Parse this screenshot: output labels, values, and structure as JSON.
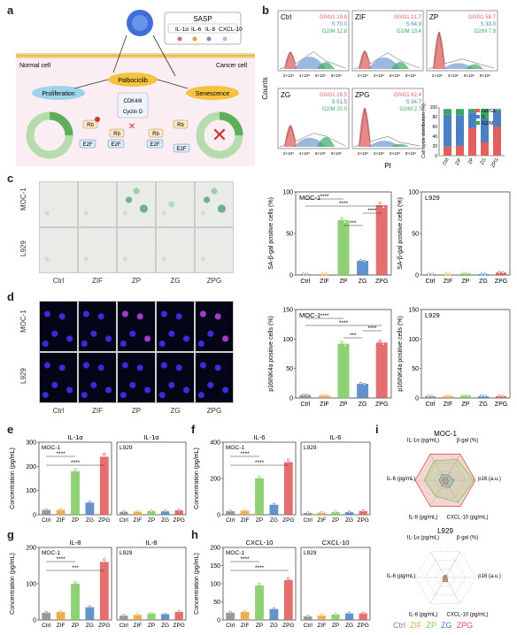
{
  "panels": {
    "a": "a",
    "b": "b",
    "c": "c",
    "d": "d",
    "e": "e",
    "f": "f",
    "g": "g",
    "h": "h",
    "i": "i"
  },
  "schematic": {
    "sasp_title": "SASP",
    "sasp_items": [
      "IL-1α",
      "IL-6",
      "IL-8",
      "CXCL-10"
    ],
    "sasp_colors": [
      "#e06666",
      "#e8a23a",
      "#8f7fbf",
      "#9fc5e8"
    ],
    "normal_cell": "Normal cell",
    "cancer_cell": "Cancer cell",
    "palbociclib": "Palbociclib",
    "proliferation": "Proliferation",
    "senescence": "Senescence",
    "cdk": "CDK4/6",
    "cyclin": "Cyclin D",
    "rb": "Rb",
    "e2f": "E2F",
    "phase_labels": [
      "G₁",
      "S",
      "G₂",
      "M"
    ]
  },
  "flow": {
    "axis_y": "Counts",
    "axis_x": "PI",
    "tick_x": [
      "2×10⁶",
      "4×10⁶",
      "6×10⁶",
      "8×10⁶"
    ],
    "samples": [
      {
        "name": "Ctrl",
        "g0g1": "G0/G1 19.8",
        "s": "S 70.0",
        "g2m": "G2/M 12.8"
      },
      {
        "name": "ZIF",
        "g0g1": "G0/G1 21.7",
        "s": "S 64.9",
        "g2m": "G2/M 13.4"
      },
      {
        "name": "ZP",
        "g0g1": "G0/G1 58.7",
        "s": "S 33.0",
        "g2m": "G2/M 7.9"
      },
      {
        "name": "ZG",
        "g0g1": "G0/G1 28.5",
        "s": "S 51.5",
        "g2m": "G2/M 20.0"
      },
      {
        "name": "ZPG",
        "g0g1": "G0/G1 62.4",
        "s": "S 34.7",
        "g2m": "G2/M 2.7"
      }
    ],
    "colors": {
      "g0g1": "#e06060",
      "s": "#4a7fc1",
      "g2m": "#3aa864"
    }
  },
  "cycle_chart": {
    "ylabel": "Cell cycle distribution (%)",
    "legend": [
      "G0/G1",
      "S",
      "G2/M"
    ],
    "yticks": [
      "0",
      "20",
      "40",
      "60",
      "80",
      "100"
    ]
  },
  "micro": {
    "rows_c": [
      "MOC-1",
      "L929"
    ],
    "rows_d": [
      "MOC-1",
      "L929"
    ],
    "cols": [
      "Ctrl",
      "ZIF",
      "ZP",
      "ZG",
      "ZPG"
    ]
  },
  "colors": {
    "Ctrl": "#888888",
    "ZIF": "#e8a23a",
    "ZP": "#7dc95e",
    "ZG": "#4a7fc1",
    "ZPG": "#e05555"
  },
  "groups": [
    "Ctrl",
    "ZIF",
    "ZP",
    "ZG",
    "ZPG"
  ],
  "sig": "****",
  "sig3": "***",
  "chart_data": [
    {
      "type": "bar",
      "id": "c_moc",
      "title": "MOC-1",
      "ylabel": "SA-β-gal positive cells (%)",
      "categories": [
        "Ctrl",
        "ZIF",
        "ZP",
        "ZG",
        "ZPG"
      ],
      "values": [
        1,
        1,
        66,
        17,
        84
      ],
      "ylim": [
        0,
        100
      ],
      "yticks": [
        0,
        50,
        100
      ],
      "sig": [
        [
          "Ctrl",
          "ZP",
          "****"
        ],
        [
          "Ctrl",
          "ZPG",
          "****"
        ],
        [
          "ZP",
          "ZG",
          "***"
        ],
        [
          "ZG",
          "ZPG",
          "****"
        ]
      ]
    },
    {
      "type": "bar",
      "id": "c_l929",
      "title": "L929",
      "ylabel": "SA-β-gal positive cells (%)",
      "categories": [
        "Ctrl",
        "ZIF",
        "ZP",
        "ZG",
        "ZPG"
      ],
      "values": [
        1,
        1,
        2,
        1,
        3
      ],
      "ylim": [
        0,
        100
      ],
      "yticks": [
        0,
        50,
        100
      ],
      "sig": []
    },
    {
      "type": "bar",
      "id": "d_moc",
      "title": "MOC-1",
      "ylabel": "p16INK4a positive cells (%)",
      "categories": [
        "Ctrl",
        "ZIF",
        "ZP",
        "ZG",
        "ZPG"
      ],
      "values": [
        5,
        4,
        92,
        24,
        94
      ],
      "ylim": [
        0,
        150
      ],
      "yticks": [
        0,
        50,
        100,
        150
      ],
      "sig": [
        [
          "Ctrl",
          "ZP",
          "****"
        ],
        [
          "Ctrl",
          "ZPG",
          "****"
        ],
        [
          "ZP",
          "ZG",
          "***"
        ],
        [
          "ZG",
          "ZPG",
          "****"
        ]
      ]
    },
    {
      "type": "bar",
      "id": "d_l929",
      "title": "L929",
      "ylabel": "p16INK4a positive cells (%)",
      "categories": [
        "Ctrl",
        "ZIF",
        "ZP",
        "ZG",
        "ZPG"
      ],
      "values": [
        3,
        3,
        4,
        3,
        3
      ],
      "ylim": [
        0,
        150
      ],
      "yticks": [
        0,
        50,
        100,
        150
      ],
      "sig": []
    },
    {
      "type": "bar",
      "id": "e",
      "title": "IL-1α",
      "ylabel": "Concentration (pg/mL)",
      "series": [
        {
          "name": "MOC-1",
          "values": [
            20,
            20,
            180,
            50,
            240
          ]
        },
        {
          "name": "L929",
          "values": [
            12,
            13,
            15,
            14,
            18
          ]
        }
      ],
      "categories": [
        "Ctrl",
        "ZIF",
        "ZP",
        "ZG",
        "ZPG"
      ],
      "ylim": [
        0,
        300
      ],
      "yticks": [
        0,
        100,
        200,
        300
      ],
      "sig": [
        [
          "Ctrl",
          "ZP",
          "****"
        ],
        [
          "Ctrl",
          "ZPG",
          "****"
        ]
      ]
    },
    {
      "type": "bar",
      "id": "f",
      "title": "IL-6",
      "ylabel": "Concentration (pg/mL)",
      "series": [
        {
          "name": "MOC-1",
          "values": [
            20,
            22,
            200,
            55,
            290
          ]
        },
        {
          "name": "L929",
          "values": [
            10,
            12,
            15,
            14,
            20
          ]
        }
      ],
      "categories": [
        "Ctrl",
        "ZIF",
        "ZP",
        "ZG",
        "ZPG"
      ],
      "ylim": [
        0,
        400
      ],
      "yticks": [
        0,
        200,
        400
      ],
      "sig": [
        [
          "Ctrl",
          "ZP",
          "****"
        ],
        [
          "Ctrl",
          "ZPG",
          "****"
        ]
      ]
    },
    {
      "type": "bar",
      "id": "g",
      "title": "IL-8",
      "ylabel": "Concentration (pg/mL)",
      "series": [
        {
          "name": "MOC-1",
          "values": [
            20,
            22,
            100,
            35,
            160
          ]
        },
        {
          "name": "L929",
          "values": [
            12,
            14,
            18,
            16,
            22
          ]
        }
      ],
      "categories": [
        "Ctrl",
        "ZIF",
        "ZP",
        "ZG",
        "ZPG"
      ],
      "ylim": [
        0,
        200
      ],
      "yticks": [
        0,
        100,
        200
      ],
      "sig": [
        [
          "Ctrl",
          "ZP",
          "****"
        ],
        [
          "Ctrl",
          "ZPG",
          "***"
        ]
      ]
    },
    {
      "type": "bar",
      "id": "h",
      "title": "CXCL-10",
      "ylabel": "Concentration (pg/mL)",
      "series": [
        {
          "name": "MOC-1",
          "values": [
            20,
            22,
            95,
            30,
            110
          ]
        },
        {
          "name": "L929",
          "values": [
            10,
            12,
            15,
            18,
            18
          ]
        }
      ],
      "categories": [
        "Ctrl",
        "ZIF",
        "ZP",
        "ZG",
        "ZPG"
      ],
      "ylim": [
        0,
        200
      ],
      "yticks": [
        0,
        50,
        100,
        150,
        200
      ],
      "sig": [
        [
          "Ctrl",
          "ZP",
          "****"
        ],
        [
          "Ctrl",
          "ZPG",
          "****"
        ]
      ]
    },
    {
      "type": "bar",
      "id": "b_cycle",
      "title": "",
      "categories": [
        "Ctrl",
        "ZIF",
        "ZP",
        "ZG",
        "ZPG"
      ],
      "series": [
        {
          "name": "G0/G1",
          "values": [
            19.8,
            21.7,
            58.7,
            28.5,
            62.4
          ]
        },
        {
          "name": "S",
          "values": [
            70.0,
            64.9,
            33.0,
            51.5,
            34.7
          ]
        },
        {
          "name": "G2/M",
          "values": [
            12.8,
            13.4,
            7.9,
            20.0,
            2.7
          ]
        }
      ],
      "ylim": [
        0,
        100
      ]
    },
    {
      "type": "radar",
      "id": "i_moc",
      "title": "MOC-1",
      "axes": [
        "β-gal (%)",
        "p16 (a.u.)",
        "CXCL-10 (pg/mL)",
        "IL-8 (pg/mL)",
        "IL-6 (pg/mL)",
        "IL-1α (pg/mL)"
      ],
      "series": [
        {
          "name": "Ctrl",
          "values": [
            0.1,
            0.1,
            0.15,
            0.12,
            0.1,
            0.1
          ]
        },
        {
          "name": "ZIF",
          "values": [
            0.1,
            0.1,
            0.15,
            0.14,
            0.1,
            0.1
          ]
        },
        {
          "name": "ZP",
          "values": [
            0.8,
            0.95,
            0.85,
            0.62,
            0.7,
            0.75
          ]
        },
        {
          "name": "ZG",
          "values": [
            0.2,
            0.28,
            0.28,
            0.22,
            0.2,
            0.22
          ]
        },
        {
          "name": "ZPG",
          "values": [
            1.0,
            1.0,
            1.0,
            1.0,
            1.0,
            1.0
          ]
        }
      ]
    },
    {
      "type": "radar",
      "id": "i_l929",
      "title": "L929",
      "axes": [
        "β-gal (%)",
        "p16 (a.u.)",
        "CXCL-10 (pg/mL)",
        "IL-8 (pg/mL)",
        "IL-6 (pg/mL)",
        "IL-1α (pg/mL)"
      ],
      "series": [
        {
          "name": "Ctrl",
          "values": [
            0.04,
            0.06,
            0.08,
            0.08,
            0.04,
            0.06
          ]
        },
        {
          "name": "ZIF",
          "values": [
            0.04,
            0.06,
            0.1,
            0.09,
            0.05,
            0.06
          ]
        },
        {
          "name": "ZP",
          "values": [
            0.06,
            0.07,
            0.12,
            0.1,
            0.06,
            0.07
          ]
        },
        {
          "name": "ZG",
          "values": [
            0.05,
            0.06,
            0.14,
            0.1,
            0.05,
            0.06
          ]
        },
        {
          "name": "ZPG",
          "values": [
            0.09,
            0.06,
            0.16,
            0.16,
            0.08,
            0.08
          ]
        }
      ]
    }
  ]
}
